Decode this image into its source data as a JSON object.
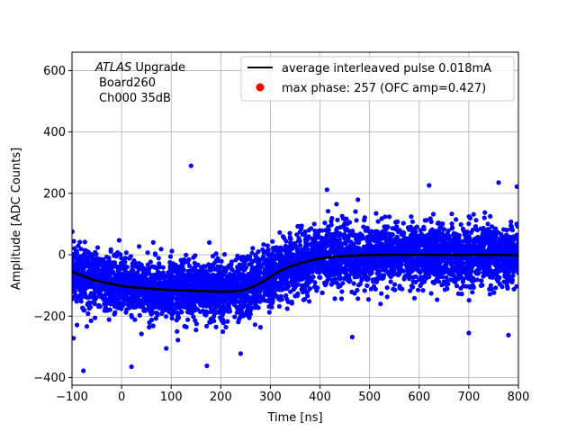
{
  "chart_data": {
    "type": "scatter",
    "xlabel": "Time [ns]",
    "ylabel": "Amplitude [ADC Counts]",
    "xlim": [
      -100,
      800
    ],
    "ylim": [
      -425,
      660
    ],
    "xticks": [
      -100,
      0,
      100,
      200,
      300,
      400,
      500,
      600,
      700,
      800
    ],
    "xtick_labels": [
      "−100",
      "0",
      "100",
      "200",
      "300",
      "400",
      "500",
      "600",
      "700",
      "800"
    ],
    "yticks": [
      -400,
      -200,
      0,
      200,
      400,
      600
    ],
    "ytick_labels": [
      "−400",
      "−200",
      "0",
      "200",
      "400",
      "600"
    ],
    "grid": true,
    "legend_placement": "top-right",
    "annotation": {
      "lines": [
        {
          "italic": "ATLAS",
          "text": " Upgrade"
        },
        {
          "text": "Board260"
        },
        {
          "text": "Ch000 35dB"
        }
      ]
    },
    "colors": {
      "scatter": "#0000ff",
      "average": "#000000",
      "max_phase": "#ff0000"
    },
    "series": [
      {
        "name": "average interleaved pulse 0.018mA",
        "kind": "line",
        "x": [
          -100,
          -80,
          -60,
          -40,
          -20,
          0,
          20,
          40,
          60,
          80,
          100,
          120,
          140,
          160,
          180,
          200,
          220,
          240,
          260,
          280,
          300,
          320,
          340,
          360,
          380,
          400,
          420,
          440,
          460,
          480,
          500,
          520,
          540,
          560,
          580,
          600,
          620,
          640,
          660,
          680,
          700,
          720,
          740,
          760,
          780,
          800
        ],
        "y": [
          -55,
          -68,
          -80,
          -88,
          -95,
          -102,
          -106,
          -108,
          -111,
          -113,
          -115,
          -116,
          -117,
          -118,
          -119,
          -120,
          -120,
          -117,
          -108,
          -92,
          -72,
          -52,
          -38,
          -27,
          -19,
          -12,
          -8,
          -5,
          -3,
          -2,
          -1,
          -1,
          0,
          0,
          -1,
          0,
          0,
          -1,
          0,
          -1,
          0,
          0,
          -1,
          0,
          -1,
          -3
        ]
      },
      {
        "name": "max phase: 257 (OFC amp=0.427)",
        "kind": "point",
        "x": [
          257
        ],
        "y": [
          -120
        ]
      }
    ],
    "scatter_points": {
      "description_of_band": "dense cloud of blue sample points following the average pulse with roughly ±80 ADC spread",
      "outliers": [
        {
          "x": -77,
          "y": -378
        },
        {
          "x": 140,
          "y": 290
        },
        {
          "x": 172,
          "y": -362
        },
        {
          "x": 20,
          "y": -365
        },
        {
          "x": 414,
          "y": 212
        },
        {
          "x": 760,
          "y": 235
        },
        {
          "x": 797,
          "y": 222
        },
        {
          "x": 620,
          "y": 226
        },
        {
          "x": -97,
          "y": -272
        },
        {
          "x": 465,
          "y": -268
        },
        {
          "x": 700,
          "y": -255
        },
        {
          "x": 780,
          "y": -262
        },
        {
          "x": 240,
          "y": -322
        },
        {
          "x": 90,
          "y": -305
        }
      ]
    }
  }
}
